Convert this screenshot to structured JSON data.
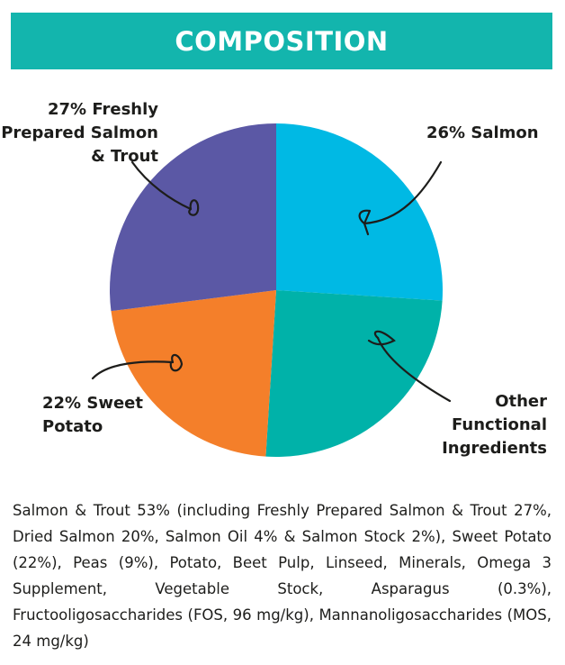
{
  "header": {
    "title": "COMPOSITION",
    "color": "#13b5ad"
  },
  "chart_data": {
    "type": "pie",
    "start": "top",
    "direction": "clockwise",
    "slices": [
      {
        "label": "26% Salmon",
        "value": 26,
        "color": "#00b9e4"
      },
      {
        "label": "Other\nFunctional\nIngredients",
        "value": 25,
        "color": "#00b2a9"
      },
      {
        "label": "22% Sweet\nPotato",
        "value": 22,
        "color": "#f47f2a"
      },
      {
        "label": "27% Freshly\nPrepared Salmon\n& Trout",
        "value": 27,
        "color": "#5b58a5"
      }
    ]
  },
  "description": "Salmon & Trout 53% (including Freshly Prepared Salmon & Trout 27%, Dried Salmon 20%, Salmon Oil 4% & Salmon Stock 2%), Sweet Potato (22%), Peas (9%), Potato, Beet Pulp, Linseed, Minerals, Omega 3 Supplement, Vegetable Stock, Asparagus (0.3%),  Fructooligosaccharides (FOS, 96 mg/kg), Mannanoligosaccharides (MOS, 24 mg/kg)"
}
